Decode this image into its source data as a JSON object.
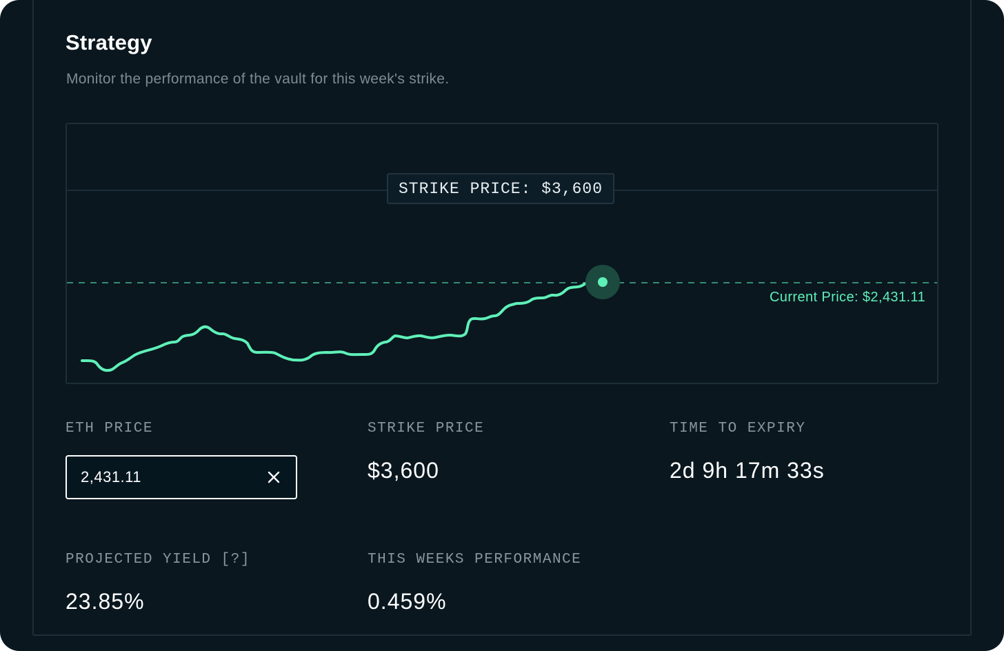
{
  "header": {
    "title": "Strategy",
    "subtitle": "Monitor the performance of the vault for this week's strike."
  },
  "chart": {
    "strike_tag": "STRIKE PRICE: $3,600",
    "current_price_label": "Current Price: $2,431.11",
    "line_color": "#5ff0b8",
    "grid_color": "#1e2e38"
  },
  "stats": {
    "eth_price": {
      "label": "ETH PRICE",
      "value": "2,431.11",
      "clear_icon": "close-icon"
    },
    "strike_price": {
      "label": "STRIKE PRICE",
      "value": "$3,600"
    },
    "time_to_expiry": {
      "label": "TIME TO EXPIRY",
      "value": "2d 9h 17m 33s"
    },
    "projected_yield": {
      "label": "PROJECTED YIELD [?]",
      "value": "23.85%"
    },
    "weekly_performance": {
      "label": "THIS WEEKS PERFORMANCE",
      "value": "0.459%"
    }
  },
  "colors": {
    "background": "#0a171f",
    "accent": "#5ff0b8",
    "muted_text": "#7f8b93"
  }
}
